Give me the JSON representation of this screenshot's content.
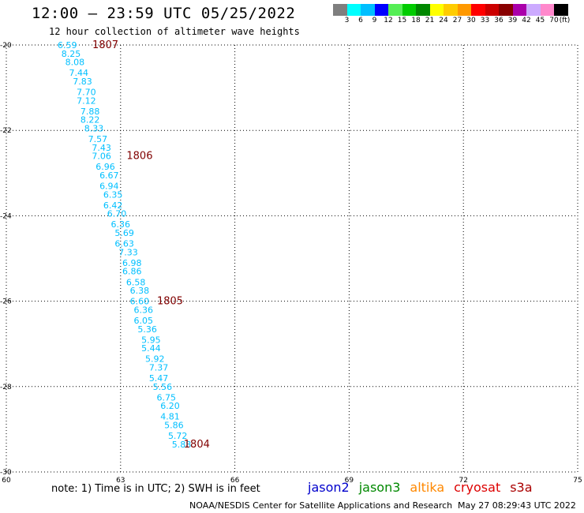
{
  "header": {
    "title": "12:00 – 23:59 UTC 05/25/2022",
    "subtitle": "12 hour collection of altimeter wave heights"
  },
  "legend": {
    "unit": "(ft)",
    "bins": [
      {
        "label": "3",
        "color": "#7f7f7f"
      },
      {
        "label": "6",
        "color": "#00ffff"
      },
      {
        "label": "9",
        "color": "#00bfff"
      },
      {
        "label": "12",
        "color": "#0000ff"
      },
      {
        "label": "15",
        "color": "#55ee55"
      },
      {
        "label": "18",
        "color": "#00cc00"
      },
      {
        "label": "21",
        "color": "#008800"
      },
      {
        "label": "24",
        "color": "#ffff00"
      },
      {
        "label": "27",
        "color": "#ffcc00"
      },
      {
        "label": "30",
        "color": "#ff9900"
      },
      {
        "label": "33",
        "color": "#ff0000"
      },
      {
        "label": "36",
        "color": "#cc0000"
      },
      {
        "label": "39",
        "color": "#880000"
      },
      {
        "label": "42",
        "color": "#aa00aa"
      },
      {
        "label": "45",
        "color": "#ccaaff"
      },
      {
        "label": "70",
        "color": "#ff88cc"
      },
      {
        "label": "",
        "color": "#000000"
      }
    ]
  },
  "chart_data": {
    "type": "scatter",
    "xlim": [
      60,
      75
    ],
    "ylim": [
      -30,
      -20
    ],
    "xticks": [
      "60",
      "63",
      "66",
      "69",
      "72",
      "75"
    ],
    "yticks": [
      "-20",
      "-22",
      "-24",
      "-26",
      "-28",
      "-30"
    ],
    "grid": true,
    "point_color": "#00bfff",
    "time_color": "#800000",
    "points": [
      {
        "lon": 61.6,
        "lat": -20.0,
        "swh": "6.59"
      },
      {
        "lon": 61.7,
        "lat": -20.2,
        "swh": "8.25"
      },
      {
        "lon": 61.8,
        "lat": -20.4,
        "swh": "8.08"
      },
      {
        "lon": 61.9,
        "lat": -20.65,
        "swh": "7.44"
      },
      {
        "lon": 62.0,
        "lat": -20.85,
        "swh": "7.83"
      },
      {
        "lon": 62.1,
        "lat": -21.1,
        "swh": "7.70"
      },
      {
        "lon": 62.1,
        "lat": -21.3,
        "swh": "7.12"
      },
      {
        "lon": 62.2,
        "lat": -21.55,
        "swh": "7.88"
      },
      {
        "lon": 62.2,
        "lat": -21.75,
        "swh": "8.22"
      },
      {
        "lon": 62.3,
        "lat": -21.95,
        "swh": "8.33"
      },
      {
        "lon": 62.4,
        "lat": -22.2,
        "swh": "7.57"
      },
      {
        "lon": 62.5,
        "lat": -22.4,
        "swh": "7.43"
      },
      {
        "lon": 62.5,
        "lat": -22.6,
        "swh": "7.06"
      },
      {
        "lon": 62.6,
        "lat": -22.85,
        "swh": "6.96"
      },
      {
        "lon": 62.7,
        "lat": -23.05,
        "swh": "6.67"
      },
      {
        "lon": 62.7,
        "lat": -23.3,
        "swh": "6.94"
      },
      {
        "lon": 62.8,
        "lat": -23.5,
        "swh": "6.35"
      },
      {
        "lon": 62.8,
        "lat": -23.75,
        "swh": "6.42"
      },
      {
        "lon": 62.9,
        "lat": -23.95,
        "swh": "6.70"
      },
      {
        "lon": 63.0,
        "lat": -24.2,
        "swh": "6.36"
      },
      {
        "lon": 63.1,
        "lat": -24.4,
        "swh": "5.69"
      },
      {
        "lon": 63.1,
        "lat": -24.65,
        "swh": "6.63"
      },
      {
        "lon": 63.2,
        "lat": -24.85,
        "swh": "7.33"
      },
      {
        "lon": 63.3,
        "lat": -25.1,
        "swh": "6.98"
      },
      {
        "lon": 63.3,
        "lat": -25.3,
        "swh": "6.86"
      },
      {
        "lon": 63.4,
        "lat": -25.55,
        "swh": "6.58"
      },
      {
        "lon": 63.5,
        "lat": -25.75,
        "swh": "6.38"
      },
      {
        "lon": 63.5,
        "lat": -26.0,
        "swh": "6.60"
      },
      {
        "lon": 63.6,
        "lat": -26.2,
        "swh": "6.36"
      },
      {
        "lon": 63.6,
        "lat": -26.45,
        "swh": "6.05"
      },
      {
        "lon": 63.7,
        "lat": -26.65,
        "swh": "5.36"
      },
      {
        "lon": 63.8,
        "lat": -26.9,
        "swh": "5.95"
      },
      {
        "lon": 63.8,
        "lat": -27.1,
        "swh": "5.44"
      },
      {
        "lon": 63.9,
        "lat": -27.35,
        "swh": "5.92"
      },
      {
        "lon": 64.0,
        "lat": -27.55,
        "swh": "7.37"
      },
      {
        "lon": 64.0,
        "lat": -27.8,
        "swh": "5.47"
      },
      {
        "lon": 64.1,
        "lat": -28.0,
        "swh": "5.56"
      },
      {
        "lon": 64.2,
        "lat": -28.25,
        "swh": "6.75"
      },
      {
        "lon": 64.3,
        "lat": -28.45,
        "swh": "6.20"
      },
      {
        "lon": 64.3,
        "lat": -28.7,
        "swh": "4.81"
      },
      {
        "lon": 64.4,
        "lat": -28.9,
        "swh": "5.86"
      },
      {
        "lon": 64.5,
        "lat": -29.15,
        "swh": "5.72"
      },
      {
        "lon": 64.6,
        "lat": -29.35,
        "swh": "5.88"
      }
    ],
    "time_labels": [
      {
        "lon": 62.6,
        "lat": -20.0,
        "text": "1807"
      },
      {
        "lon": 63.5,
        "lat": -22.6,
        "text": "1806"
      },
      {
        "lon": 64.3,
        "lat": -26.0,
        "text": "1805"
      },
      {
        "lon": 65.0,
        "lat": -29.35,
        "text": "1804"
      }
    ]
  },
  "footer": {
    "note": "note: 1) Time is in UTC; 2) SWH is in feet",
    "credit": "NOAA/NESDIS Center for Satellite Applications and Research",
    "timestamp": "May 27 08:29:43 UTC 2022",
    "missions": [
      {
        "name": "jason2",
        "color": "#0000cc"
      },
      {
        "name": "jason3",
        "color": "#008800"
      },
      {
        "name": "altika",
        "color": "#ff8800"
      },
      {
        "name": "cryosat",
        "color": "#dd0000"
      },
      {
        "name": "s3a",
        "color": "#aa0000"
      }
    ]
  }
}
